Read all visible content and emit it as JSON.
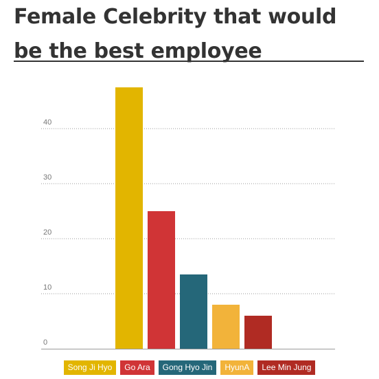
{
  "title": "Female Celebrity that would be the best employee",
  "chart_data": {
    "type": "bar",
    "title": "Female Celebrity that would be the best employee",
    "categories": [
      "Song Ji Hyo",
      "Go Ara",
      "Gong Hyo Jin",
      "HyunA",
      "Lee Min Jung"
    ],
    "values": [
      47.5,
      25,
      13.5,
      8,
      6
    ],
    "colors": [
      "#e2b500",
      "#d03436",
      "#256779",
      "#f2b33a",
      "#b02b23"
    ],
    "yticks": [
      0,
      10,
      20,
      30,
      40
    ],
    "ylim": [
      0,
      50
    ],
    "grid": true,
    "legend_position": "bottom"
  }
}
